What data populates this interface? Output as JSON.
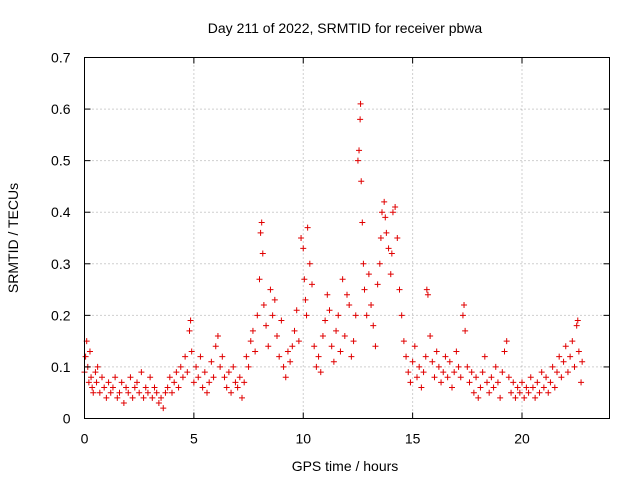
{
  "chart_data": {
    "type": "scatter",
    "title": "Day 211 of 2022, SRMTID for receiver pbwa",
    "xlabel": "GPS time / hours",
    "ylabel": "SRMTID / TECUs",
    "xlim": [
      0,
      24
    ],
    "ylim": [
      0,
      0.7
    ],
    "xticks": [
      0,
      5,
      10,
      15,
      20
    ],
    "xtick_labels": [
      "0",
      "5",
      "10",
      "15",
      "20"
    ],
    "yticks": [
      0,
      0.1,
      0.2,
      0.3,
      0.4,
      0.5,
      0.6,
      0.7
    ],
    "ytick_labels": [
      "0",
      "0.1",
      "0.2",
      "0.3",
      "0.4",
      "0.5",
      "0.6",
      "0.7"
    ],
    "grid": true,
    "marker": "+",
    "color": "#e00000",
    "series": [
      {
        "name": "SRMTID",
        "points": [
          [
            0.0,
            0.09
          ],
          [
            0.05,
            0.12
          ],
          [
            0.1,
            0.15
          ],
          [
            0.15,
            0.1
          ],
          [
            0.2,
            0.07
          ],
          [
            0.25,
            0.13
          ],
          [
            0.3,
            0.08
          ],
          [
            0.35,
            0.06
          ],
          [
            0.4,
            0.05
          ],
          [
            0.5,
            0.09
          ],
          [
            0.55,
            0.07
          ],
          [
            0.6,
            0.1
          ],
          [
            0.7,
            0.05
          ],
          [
            0.8,
            0.08
          ],
          [
            0.9,
            0.06
          ],
          [
            1.0,
            0.04
          ],
          [
            1.1,
            0.07
          ],
          [
            1.2,
            0.05
          ],
          [
            1.3,
            0.06
          ],
          [
            1.4,
            0.08
          ],
          [
            1.5,
            0.04
          ],
          [
            1.6,
            0.05
          ],
          [
            1.7,
            0.07
          ],
          [
            1.8,
            0.03
          ],
          [
            1.9,
            0.06
          ],
          [
            2.0,
            0.05
          ],
          [
            2.1,
            0.08
          ],
          [
            2.2,
            0.04
          ],
          [
            2.3,
            0.06
          ],
          [
            2.4,
            0.07
          ],
          [
            2.5,
            0.05
          ],
          [
            2.6,
            0.09
          ],
          [
            2.7,
            0.04
          ],
          [
            2.8,
            0.06
          ],
          [
            2.9,
            0.05
          ],
          [
            3.0,
            0.08
          ],
          [
            3.1,
            0.04
          ],
          [
            3.2,
            0.06
          ],
          [
            3.3,
            0.05
          ],
          [
            3.4,
            0.03
          ],
          [
            3.5,
            0.04
          ],
          [
            3.6,
            0.02
          ],
          [
            3.7,
            0.05
          ],
          [
            3.8,
            0.06
          ],
          [
            3.9,
            0.08
          ],
          [
            4.0,
            0.05
          ],
          [
            4.1,
            0.07
          ],
          [
            4.2,
            0.09
          ],
          [
            4.3,
            0.06
          ],
          [
            4.4,
            0.1
          ],
          [
            4.5,
            0.08
          ],
          [
            4.6,
            0.12
          ],
          [
            4.7,
            0.09
          ],
          [
            4.8,
            0.17
          ],
          [
            4.85,
            0.19
          ],
          [
            4.9,
            0.13
          ],
          [
            5.0,
            0.07
          ],
          [
            5.1,
            0.1
          ],
          [
            5.2,
            0.08
          ],
          [
            5.3,
            0.12
          ],
          [
            5.4,
            0.06
          ],
          [
            5.5,
            0.09
          ],
          [
            5.6,
            0.05
          ],
          [
            5.7,
            0.07
          ],
          [
            5.8,
            0.11
          ],
          [
            5.9,
            0.08
          ],
          [
            6.0,
            0.14
          ],
          [
            6.1,
            0.16
          ],
          [
            6.2,
            0.1
          ],
          [
            6.3,
            0.12
          ],
          [
            6.4,
            0.08
          ],
          [
            6.5,
            0.06
          ],
          [
            6.6,
            0.09
          ],
          [
            6.7,
            0.05
          ],
          [
            6.8,
            0.1
          ],
          [
            6.9,
            0.07
          ],
          [
            7.0,
            0.06
          ],
          [
            7.1,
            0.08
          ],
          [
            7.2,
            0.04
          ],
          [
            7.3,
            0.07
          ],
          [
            7.4,
            0.12
          ],
          [
            7.5,
            0.1
          ],
          [
            7.6,
            0.15
          ],
          [
            7.7,
            0.17
          ],
          [
            7.8,
            0.13
          ],
          [
            7.9,
            0.2
          ],
          [
            8.0,
            0.27
          ],
          [
            8.05,
            0.36
          ],
          [
            8.1,
            0.38
          ],
          [
            8.15,
            0.32
          ],
          [
            8.2,
            0.22
          ],
          [
            8.3,
            0.18
          ],
          [
            8.4,
            0.14
          ],
          [
            8.5,
            0.25
          ],
          [
            8.6,
            0.2
          ],
          [
            8.7,
            0.23
          ],
          [
            8.8,
            0.16
          ],
          [
            8.9,
            0.12
          ],
          [
            9.0,
            0.19
          ],
          [
            9.1,
            0.1
          ],
          [
            9.2,
            0.08
          ],
          [
            9.3,
            0.13
          ],
          [
            9.4,
            0.11
          ],
          [
            9.5,
            0.14
          ],
          [
            9.6,
            0.17
          ],
          [
            9.7,
            0.21
          ],
          [
            9.8,
            0.15
          ],
          [
            9.9,
            0.35
          ],
          [
            10.0,
            0.33
          ],
          [
            10.05,
            0.27
          ],
          [
            10.1,
            0.23
          ],
          [
            10.15,
            0.2
          ],
          [
            10.2,
            0.37
          ],
          [
            10.3,
            0.3
          ],
          [
            10.4,
            0.26
          ],
          [
            10.5,
            0.14
          ],
          [
            10.6,
            0.1
          ],
          [
            10.7,
            0.12
          ],
          [
            10.8,
            0.09
          ],
          [
            10.9,
            0.16
          ],
          [
            11.0,
            0.19
          ],
          [
            11.1,
            0.24
          ],
          [
            11.2,
            0.21
          ],
          [
            11.3,
            0.14
          ],
          [
            11.4,
            0.11
          ],
          [
            11.5,
            0.17
          ],
          [
            11.6,
            0.2
          ],
          [
            11.7,
            0.13
          ],
          [
            11.8,
            0.27
          ],
          [
            11.9,
            0.16
          ],
          [
            12.0,
            0.24
          ],
          [
            12.1,
            0.22
          ],
          [
            12.2,
            0.12
          ],
          [
            12.3,
            0.15
          ],
          [
            12.4,
            0.2
          ],
          [
            12.5,
            0.5
          ],
          [
            12.55,
            0.52
          ],
          [
            12.6,
            0.58
          ],
          [
            12.62,
            0.61
          ],
          [
            12.65,
            0.46
          ],
          [
            12.7,
            0.38
          ],
          [
            12.75,
            0.3
          ],
          [
            12.8,
            0.25
          ],
          [
            12.9,
            0.2
          ],
          [
            13.0,
            0.28
          ],
          [
            13.1,
            0.22
          ],
          [
            13.2,
            0.18
          ],
          [
            13.3,
            0.14
          ],
          [
            13.4,
            0.26
          ],
          [
            13.5,
            0.3
          ],
          [
            13.55,
            0.35
          ],
          [
            13.6,
            0.4
          ],
          [
            13.7,
            0.42
          ],
          [
            13.75,
            0.39
          ],
          [
            13.8,
            0.36
          ],
          [
            13.9,
            0.33
          ],
          [
            14.0,
            0.28
          ],
          [
            14.05,
            0.32
          ],
          [
            14.1,
            0.4
          ],
          [
            14.2,
            0.41
          ],
          [
            14.3,
            0.35
          ],
          [
            14.4,
            0.25
          ],
          [
            14.5,
            0.2
          ],
          [
            14.6,
            0.15
          ],
          [
            14.7,
            0.12
          ],
          [
            14.8,
            0.09
          ],
          [
            14.9,
            0.07
          ],
          [
            15.0,
            0.11
          ],
          [
            15.1,
            0.14
          ],
          [
            15.2,
            0.08
          ],
          [
            15.3,
            0.1
          ],
          [
            15.4,
            0.06
          ],
          [
            15.5,
            0.09
          ],
          [
            15.6,
            0.12
          ],
          [
            15.65,
            0.25
          ],
          [
            15.7,
            0.24
          ],
          [
            15.8,
            0.16
          ],
          [
            15.9,
            0.11
          ],
          [
            16.0,
            0.08
          ],
          [
            16.1,
            0.13
          ],
          [
            16.2,
            0.1
          ],
          [
            16.3,
            0.07
          ],
          [
            16.4,
            0.09
          ],
          [
            16.5,
            0.12
          ],
          [
            16.6,
            0.08
          ],
          [
            16.7,
            0.11
          ],
          [
            16.8,
            0.06
          ],
          [
            16.9,
            0.09
          ],
          [
            17.0,
            0.13
          ],
          [
            17.1,
            0.1
          ],
          [
            17.2,
            0.08
          ],
          [
            17.3,
            0.2
          ],
          [
            17.35,
            0.22
          ],
          [
            17.4,
            0.17
          ],
          [
            17.5,
            0.1
          ],
          [
            17.6,
            0.07
          ],
          [
            17.7,
            0.09
          ],
          [
            17.8,
            0.05
          ],
          [
            17.9,
            0.08
          ],
          [
            18.0,
            0.04
          ],
          [
            18.1,
            0.06
          ],
          [
            18.2,
            0.09
          ],
          [
            18.3,
            0.12
          ],
          [
            18.4,
            0.07
          ],
          [
            18.5,
            0.05
          ],
          [
            18.6,
            0.08
          ],
          [
            18.7,
            0.06
          ],
          [
            18.8,
            0.1
          ],
          [
            18.9,
            0.07
          ],
          [
            19.0,
            0.04
          ],
          [
            19.1,
            0.09
          ],
          [
            19.2,
            0.13
          ],
          [
            19.3,
            0.15
          ],
          [
            19.4,
            0.08
          ],
          [
            19.5,
            0.05
          ],
          [
            19.6,
            0.07
          ],
          [
            19.7,
            0.04
          ],
          [
            19.8,
            0.06
          ],
          [
            19.9,
            0.05
          ],
          [
            20.0,
            0.07
          ],
          [
            20.1,
            0.04
          ],
          [
            20.2,
            0.06
          ],
          [
            20.3,
            0.05
          ],
          [
            20.4,
            0.08
          ],
          [
            20.5,
            0.06
          ],
          [
            20.6,
            0.04
          ],
          [
            20.7,
            0.07
          ],
          [
            20.8,
            0.05
          ],
          [
            20.9,
            0.09
          ],
          [
            21.0,
            0.06
          ],
          [
            21.1,
            0.08
          ],
          [
            21.2,
            0.05
          ],
          [
            21.3,
            0.07
          ],
          [
            21.4,
            0.1
          ],
          [
            21.5,
            0.06
          ],
          [
            21.6,
            0.09
          ],
          [
            21.7,
            0.12
          ],
          [
            21.8,
            0.08
          ],
          [
            21.9,
            0.11
          ],
          [
            22.0,
            0.14
          ],
          [
            22.1,
            0.09
          ],
          [
            22.2,
            0.12
          ],
          [
            22.3,
            0.15
          ],
          [
            22.4,
            0.1
          ],
          [
            22.5,
            0.18
          ],
          [
            22.55,
            0.19
          ],
          [
            22.6,
            0.13
          ],
          [
            22.7,
            0.07
          ],
          [
            22.75,
            0.11
          ]
        ]
      }
    ]
  }
}
